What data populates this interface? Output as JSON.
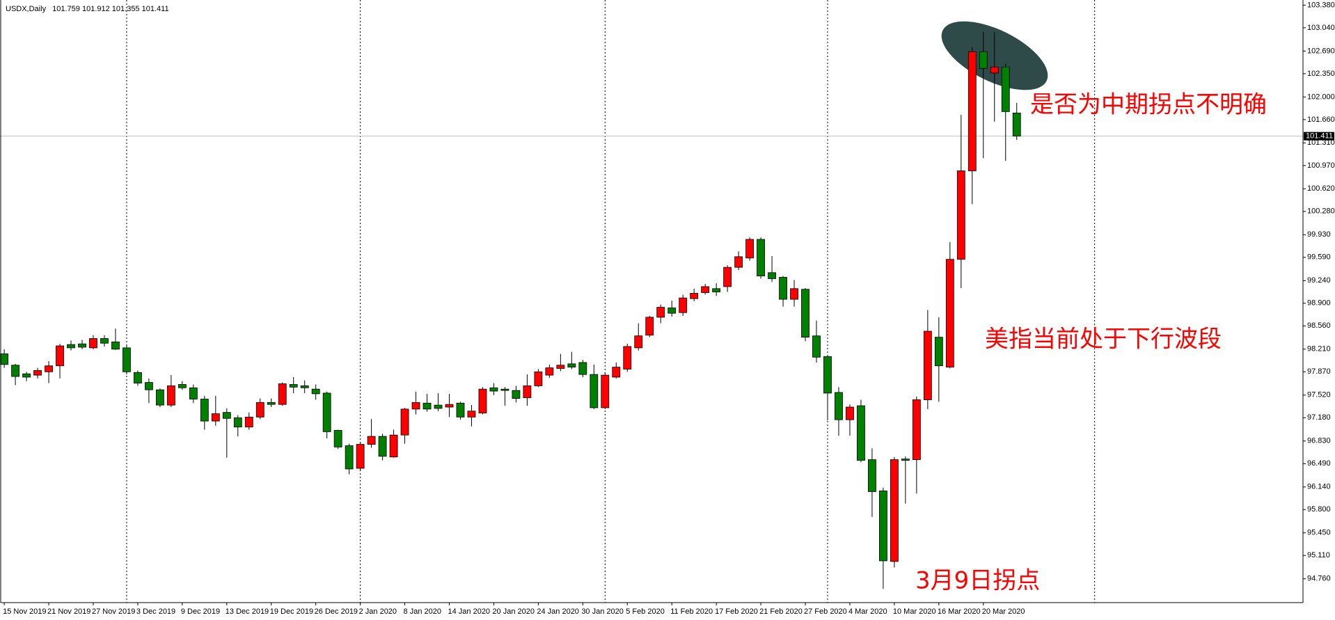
{
  "chart_data": {
    "type": "candlestick",
    "title": "USDX,Daily",
    "x": [
      "15 Nov 2019",
      null,
      null,
      null,
      "21 Nov 2019",
      null,
      null,
      null,
      "27 Nov 2019",
      null,
      null,
      null,
      "3 Dec 2019",
      null,
      null,
      null,
      "9 Dec 2019",
      null,
      null,
      null,
      "13 Dec 2019",
      null,
      null,
      null,
      "19 Dec 2019",
      null,
      null,
      null,
      "26 Dec 2019",
      null,
      null,
      null,
      "2 Jan 2020",
      null,
      null,
      null,
      "8 Jan 2020",
      null,
      null,
      null,
      "14 Jan 2020",
      null,
      null,
      null,
      "20 Jan 2020",
      null,
      null,
      null,
      "24 Jan 2020",
      null,
      null,
      null,
      "30 Jan 2020",
      null,
      null,
      null,
      "5 Feb 2020",
      null,
      null,
      null,
      "11 Feb 2020",
      null,
      null,
      null,
      "17 Feb 2020",
      null,
      null,
      null,
      "21 Feb 2020",
      null,
      null,
      null,
      "27 Feb 2020",
      null,
      null,
      null,
      "4 Mar 2020",
      null,
      null,
      null,
      "10 Mar 2020",
      null,
      null,
      null,
      "16 Mar 2020",
      null,
      null,
      null,
      "20 Mar 2020",
      null,
      null,
      null
    ],
    "open": [
      98.14,
      97.97,
      97.84,
      97.82,
      97.87,
      97.96,
      98.28,
      98.29,
      98.23,
      98.37,
      98.32,
      98.23,
      97.86,
      97.71,
      97.6,
      97.37,
      97.68,
      97.63,
      97.46,
      97.13,
      97.26,
      97.18,
      97.04,
      97.19,
      97.41,
      97.38,
      97.68,
      97.66,
      97.61,
      97.55,
      96.99,
      96.76,
      96.42,
      96.78,
      96.9,
      96.59,
      96.92,
      97.31,
      97.4,
      97.37,
      97.34,
      97.4,
      97.19,
      97.25,
      97.63,
      97.61,
      97.59,
      97.48,
      97.66,
      97.82,
      97.92,
      97.99,
      98.01,
      97.83,
      97.33,
      97.79,
      97.91,
      98.23,
      98.42,
      98.69,
      98.83,
      98.76,
      98.97,
      99.06,
      99.12,
      99.15,
      99.44,
      99.58,
      99.86,
      99.36,
      99.29,
      98.96,
      99.11,
      98.41,
      98.1,
      97.56,
      97.15,
      97.36,
      96.55,
      96.08,
      95.02,
      96.56,
      96.55,
      97.45,
      98.39,
      97.94,
      99.56,
      100.89,
      102.68,
      102.36,
      102.45,
      101.759
    ],
    "high": [
      98.21,
      97.99,
      97.87,
      97.93,
      98.03,
      98.29,
      98.34,
      98.35,
      98.42,
      98.42,
      98.52,
      98.28,
      97.89,
      97.77,
      97.62,
      97.82,
      97.73,
      97.68,
      97.51,
      97.51,
      97.32,
      97.22,
      97.26,
      97.47,
      97.47,
      97.71,
      97.79,
      97.74,
      97.68,
      97.57,
      97.0,
      96.79,
      96.81,
      97.16,
      96.94,
      97.0,
      97.33,
      97.57,
      97.54,
      97.55,
      97.54,
      97.42,
      97.37,
      97.64,
      97.7,
      97.64,
      97.66,
      97.83,
      97.91,
      97.98,
      98.14,
      98.17,
      98.05,
      97.98,
      97.86,
      98.01,
      98.29,
      98.6,
      98.71,
      98.88,
      98.94,
      99.03,
      99.12,
      99.19,
      99.2,
      99.47,
      99.68,
      99.89,
      99.89,
      99.61,
      99.31,
      99.25,
      99.13,
      98.64,
      98.12,
      97.64,
      97.38,
      97.45,
      96.72,
      96.13,
      96.59,
      96.6,
      97.5,
      98.8,
      98.69,
      99.82,
      101.73,
      102.75,
      102.98,
      102.97,
      102.5,
      101.912
    ],
    "low": [
      97.93,
      97.67,
      97.73,
      97.77,
      97.7,
      97.77,
      98.19,
      98.21,
      98.21,
      98.25,
      98.2,
      97.83,
      97.66,
      97.4,
      97.34,
      97.34,
      97.6,
      97.4,
      97.0,
      97.06,
      96.58,
      96.9,
      97.0,
      97.16,
      97.34,
      97.36,
      97.55,
      97.55,
      97.45,
      96.87,
      96.71,
      96.33,
      96.38,
      96.73,
      96.54,
      96.58,
      96.79,
      97.23,
      97.27,
      97.28,
      97.19,
      97.15,
      97.05,
      97.23,
      97.52,
      97.36,
      97.41,
      97.36,
      97.64,
      97.78,
      97.88,
      97.91,
      97.79,
      97.31,
      97.31,
      97.77,
      97.87,
      98.19,
      98.39,
      98.6,
      98.7,
      98.71,
      98.93,
      99.03,
      99.01,
      99.07,
      99.4,
      99.54,
      99.27,
      99.22,
      98.85,
      98.85,
      98.33,
      98.01,
      97.14,
      96.91,
      96.91,
      96.51,
      95.69,
      94.61,
      94.93,
      95.89,
      96.04,
      97.31,
      97.42,
      97.92,
      99.13,
      100.39,
      101.08,
      101.63,
      101.04,
      101.355
    ],
    "close": [
      97.98,
      97.8,
      97.79,
      97.89,
      97.96,
      98.26,
      98.23,
      98.24,
      98.37,
      98.3,
      98.21,
      97.87,
      97.7,
      97.6,
      97.37,
      97.66,
      97.63,
      97.46,
      97.13,
      97.24,
      97.17,
      97.04,
      97.19,
      97.41,
      97.38,
      97.69,
      97.64,
      97.63,
      97.54,
      96.97,
      96.74,
      96.41,
      96.78,
      96.9,
      96.6,
      96.92,
      97.31,
      97.41,
      97.31,
      97.32,
      97.38,
      97.19,
      97.28,
      97.61,
      97.58,
      97.59,
      97.47,
      97.66,
      97.87,
      97.93,
      97.97,
      97.94,
      97.83,
      97.33,
      97.82,
      97.94,
      98.25,
      98.41,
      98.69,
      98.84,
      98.75,
      98.98,
      99.05,
      99.15,
      99.07,
      99.44,
      99.6,
      99.86,
      99.31,
      99.27,
      98.96,
      99.12,
      98.39,
      98.09,
      97.55,
      97.15,
      97.34,
      96.54,
      96.07,
      95.03,
      96.55,
      96.54,
      97.45,
      98.48,
      97.96,
      99.56,
      100.89,
      102.68,
      102.43,
      102.45,
      101.78,
      101.411
    ],
    "up_color": "#ff0000",
    "down_color": "#008000",
    "ylim": [
      94.402,
      103.457
    ],
    "yticks": [
      {
        "value": 103.38,
        "label": "103.380"
      },
      {
        "value": 103.04,
        "label": "103.040"
      },
      {
        "value": 102.69,
        "label": "102.690"
      },
      {
        "value": 102.35,
        "label": "102.350"
      },
      {
        "value": 102.0,
        "label": "102.000"
      },
      {
        "value": 101.66,
        "label": "101.660"
      },
      {
        "value": 101.31,
        "label": "101.310"
      },
      {
        "value": 100.97,
        "label": "100.970"
      },
      {
        "value": 100.62,
        "label": "100.620"
      },
      {
        "value": 100.28,
        "label": "100.280"
      },
      {
        "value": 99.93,
        "label": "99.930"
      },
      {
        "value": 99.59,
        "label": "99.590"
      },
      {
        "value": 99.24,
        "label": "99.240"
      },
      {
        "value": 98.9,
        "label": "98.900"
      },
      {
        "value": 98.56,
        "label": "98.560"
      },
      {
        "value": 98.21,
        "label": "98.210"
      },
      {
        "value": 97.87,
        "label": "97.870"
      },
      {
        "value": 97.52,
        "label": "97.520"
      },
      {
        "value": 97.18,
        "label": "97.180"
      },
      {
        "value": 96.83,
        "label": "96.830"
      },
      {
        "value": 96.49,
        "label": "96.490"
      },
      {
        "value": 96.14,
        "label": "96.140"
      },
      {
        "value": 95.8,
        "label": "95.800"
      },
      {
        "value": 95.45,
        "label": "95.450"
      },
      {
        "value": 95.11,
        "label": "95.110"
      },
      {
        "value": 94.76,
        "label": "94.760"
      }
    ],
    "annotations": [
      "是否为中期拐点不明确",
      "美指当前处于下行波段",
      "3月9日拐点"
    ]
  }
}
